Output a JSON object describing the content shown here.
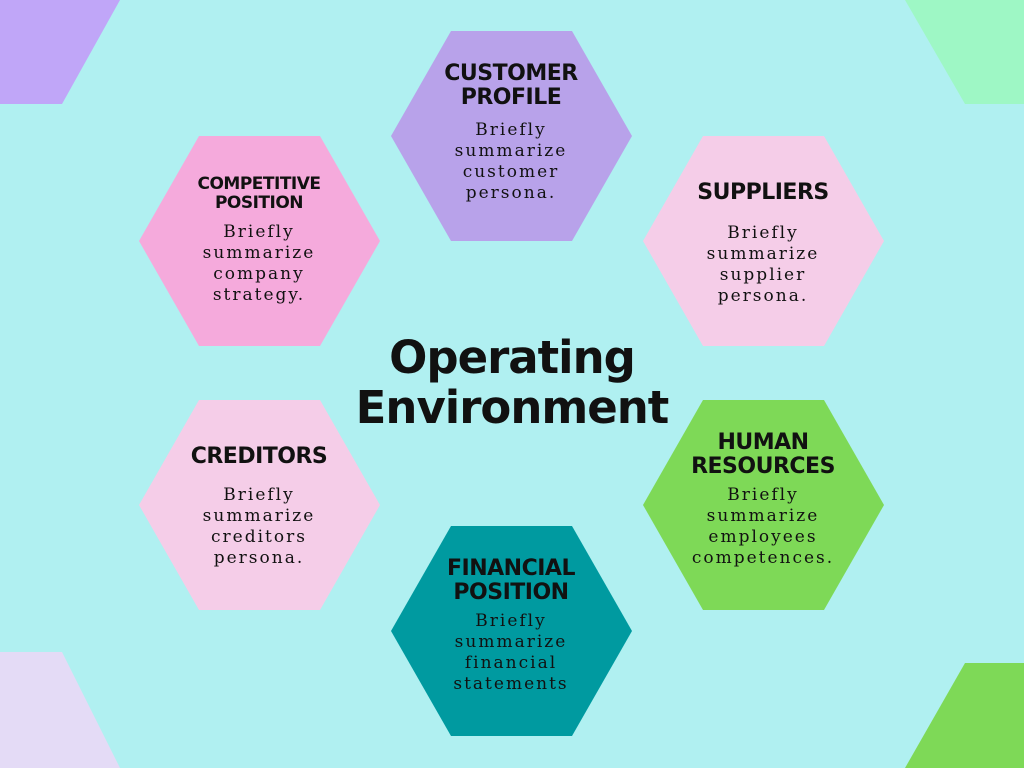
{
  "colors": {
    "background": "#b0f0f1",
    "customer_profile": "#b8a2ea",
    "competitive_position": "#f5aadc",
    "suppliers": "#f5cde8",
    "creditors": "#f5cde8",
    "human_resources": "#7ed957",
    "financial_position": "#009aa0",
    "corner_top_left": "#c0a6f8",
    "corner_top_right": "#9ef7c5",
    "corner_bottom_left": "#e4dbf6",
    "corner_bottom_right": "#7ed957"
  },
  "center": {
    "title_line1": "Operating",
    "title_line2": "Environment"
  },
  "hexagons": {
    "customer_profile": {
      "title_line1": "CUSTOMER",
      "title_line2": "PROFILE",
      "body": "Briefly summarize customer persona."
    },
    "competitive_position": {
      "title_line1": "COMPETITIVE",
      "title_line2": "POSITION",
      "body": "Briefly summarize company strategy."
    },
    "suppliers": {
      "title_line1": "SUPPLIERS",
      "body": "Briefly summarize supplier persona."
    },
    "creditors": {
      "title_line1": "CREDITORS",
      "body": "Briefly summarize creditors persona."
    },
    "human_resources": {
      "title_line1": "HUMAN",
      "title_line2": "RESOURCES",
      "body": "Briefly summarize employees competences."
    },
    "financial_position": {
      "title_line1": "FINANCIAL",
      "title_line2": "POSITION",
      "body": "Briefly summarize financial statements"
    }
  }
}
